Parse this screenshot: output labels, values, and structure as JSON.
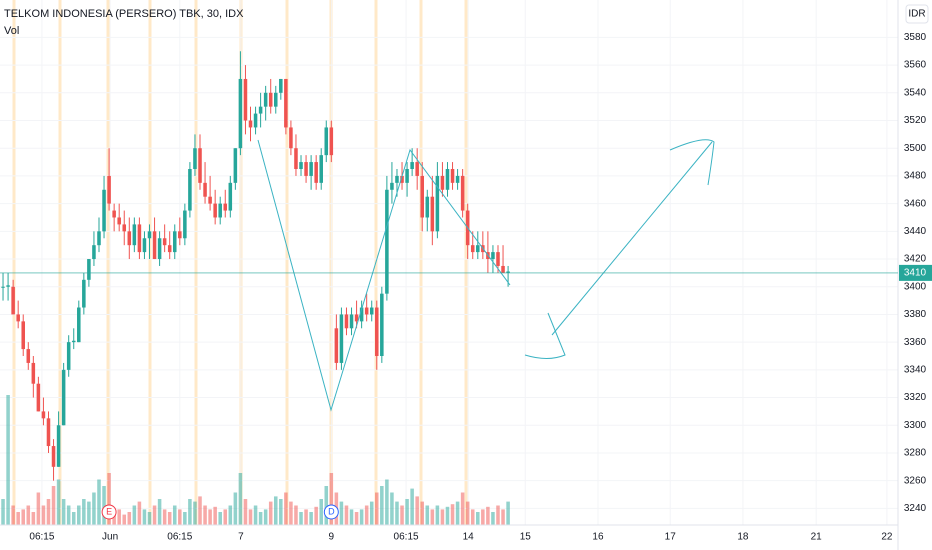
{
  "chart_data": {
    "type": "candlestick",
    "title": "TELKOM INDONESIA (PERSERO) TBK, 30, IDX",
    "volume_label": "Vol",
    "currency": "IDR",
    "last_price": 3410,
    "up_color": "#26a69a",
    "down_color": "#ef5350",
    "ylim": [
      3228,
      3607
    ],
    "yticks": [
      3240,
      3260,
      3280,
      3300,
      3320,
      3340,
      3360,
      3380,
      3400,
      3420,
      3440,
      3460,
      3480,
      3500,
      3520,
      3540,
      3560,
      3580
    ],
    "xlim": [
      -0.6,
      177.2
    ],
    "xticks": [
      {
        "value": 7.7,
        "label": "06:15"
      },
      {
        "value": 21.2,
        "label": "Jun"
      },
      {
        "value": 35,
        "label": "06:15"
      },
      {
        "value": 47.1,
        "label": "7"
      },
      {
        "value": 65,
        "label": "9"
      },
      {
        "value": 79.8,
        "label": "06:15"
      },
      {
        "value": 92.1,
        "label": "14"
      },
      {
        "value": 103.4,
        "label": "15"
      },
      {
        "value": 117.8,
        "label": "16"
      },
      {
        "value": 132.1,
        "label": "17"
      },
      {
        "value": 146.5,
        "label": "18"
      },
      {
        "value": 161,
        "label": "21"
      },
      {
        "value": 175,
        "label": "22"
      }
    ],
    "events": [
      {
        "label": "E",
        "index": 21
      },
      {
        "label": "D",
        "index": 65
      }
    ],
    "candles": [
      {
        "o": 3400,
        "h": 3410,
        "l": 3390,
        "c": 3400,
        "v": 20
      },
      {
        "o": 3400,
        "h": 3410,
        "l": 3390,
        "c": 3401,
        "v": 100
      },
      {
        "o": 3400,
        "h": 3405,
        "l": 3380,
        "c": 3380,
        "v": 15
      },
      {
        "o": 3380,
        "h": 3390,
        "l": 3370,
        "c": 3375,
        "v": 10
      },
      {
        "o": 3375,
        "h": 3380,
        "l": 3350,
        "c": 3355,
        "v": 12
      },
      {
        "o": 3355,
        "h": 3360,
        "l": 3340,
        "c": 3345,
        "v": 15
      },
      {
        "o": 3345,
        "h": 3350,
        "l": 3320,
        "c": 3330,
        "v": 10
      },
      {
        "o": 3330,
        "h": 3335,
        "l": 3310,
        "c": 3310,
        "v": 25
      },
      {
        "o": 3310,
        "h": 3320,
        "l": 3300,
        "c": 3305,
        "v": 15
      },
      {
        "o": 3305,
        "h": 3310,
        "l": 3280,
        "c": 3285,
        "v": 20
      },
      {
        "o": 3285,
        "h": 3290,
        "l": 3260,
        "c": 3270,
        "v": 30
      },
      {
        "o": 3270,
        "h": 3310,
        "l": 3270,
        "c": 3300,
        "v": 35
      },
      {
        "o": 3300,
        "h": 3345,
        "l": 3300,
        "c": 3340,
        "v": 20
      },
      {
        "o": 3340,
        "h": 3365,
        "l": 3335,
        "c": 3360,
        "v": 15
      },
      {
        "o": 3360,
        "h": 3370,
        "l": 3355,
        "c": 3361,
        "v": 10
      },
      {
        "o": 3360,
        "h": 3390,
        "l": 3360,
        "c": 3385,
        "v": 15
      },
      {
        "o": 3385,
        "h": 3410,
        "l": 3380,
        "c": 3405,
        "v": 20
      },
      {
        "o": 3405,
        "h": 3420,
        "l": 3400,
        "c": 3420,
        "v": 18
      },
      {
        "o": 3420,
        "h": 3440,
        "l": 3415,
        "c": 3430,
        "v": 25
      },
      {
        "o": 3430,
        "h": 3450,
        "l": 3425,
        "c": 3440,
        "v": 35
      },
      {
        "o": 3440,
        "h": 3480,
        "l": 3435,
        "c": 3470,
        "v": 30
      },
      {
        "o": 3480,
        "h": 3500,
        "l": 3455,
        "c": 3460,
        "v": 40
      },
      {
        "o": 3455,
        "h": 3460,
        "l": 3440,
        "c": 3450,
        "v": 10
      },
      {
        "o": 3450,
        "h": 3460,
        "l": 3440,
        "c": 3445,
        "v": 12
      },
      {
        "o": 3445,
        "h": 3455,
        "l": 3430,
        "c": 3440,
        "v": 8
      },
      {
        "o": 3440,
        "h": 3450,
        "l": 3420,
        "c": 3430,
        "v": 10
      },
      {
        "o": 3430,
        "h": 3450,
        "l": 3425,
        "c": 3445,
        "v": 15
      },
      {
        "o": 3445,
        "h": 3450,
        "l": 3420,
        "c": 3425,
        "v": 18
      },
      {
        "o": 3425,
        "h": 3440,
        "l": 3420,
        "c": 3435,
        "v": 12
      },
      {
        "o": 3435,
        "h": 3445,
        "l": 3420,
        "c": 3440,
        "v": 10
      },
      {
        "o": 3440,
        "h": 3450,
        "l": 3420,
        "c": 3420,
        "v": 15
      },
      {
        "o": 3420,
        "h": 3440,
        "l": 3415,
        "c": 3435,
        "v": 20
      },
      {
        "o": 3435,
        "h": 3445,
        "l": 3425,
        "c": 3430,
        "v": 12
      },
      {
        "o": 3430,
        "h": 3440,
        "l": 3420,
        "c": 3425,
        "v": 10
      },
      {
        "o": 3425,
        "h": 3445,
        "l": 3420,
        "c": 3440,
        "v": 15
      },
      {
        "o": 3440,
        "h": 3450,
        "l": 3430,
        "c": 3435,
        "v": 12
      },
      {
        "o": 3435,
        "h": 3460,
        "l": 3430,
        "c": 3455,
        "v": 10
      },
      {
        "o": 3455,
        "h": 3490,
        "l": 3450,
        "c": 3485,
        "v": 20
      },
      {
        "o": 3485,
        "h": 3510,
        "l": 3480,
        "c": 3500,
        "v": 18
      },
      {
        "o": 3500,
        "h": 3510,
        "l": 3470,
        "c": 3475,
        "v": 22
      },
      {
        "o": 3475,
        "h": 3490,
        "l": 3460,
        "c": 3465,
        "v": 15
      },
      {
        "o": 3465,
        "h": 3480,
        "l": 3455,
        "c": 3460,
        "v": 12
      },
      {
        "o": 3460,
        "h": 3470,
        "l": 3445,
        "c": 3450,
        "v": 14
      },
      {
        "o": 3450,
        "h": 3465,
        "l": 3445,
        "c": 3460,
        "v": 10
      },
      {
        "o": 3460,
        "h": 3470,
        "l": 3450,
        "c": 3455,
        "v": 12
      },
      {
        "o": 3455,
        "h": 3480,
        "l": 3450,
        "c": 3475,
        "v": 15
      },
      {
        "o": 3475,
        "h": 3500,
        "l": 3470,
        "c": 3500,
        "v": 25
      },
      {
        "o": 3500,
        "h": 3570,
        "l": 3495,
        "c": 3550,
        "v": 40
      },
      {
        "o": 3550,
        "h": 3560,
        "l": 3510,
        "c": 3520,
        "v": 20
      },
      {
        "o": 3520,
        "h": 3530,
        "l": 3505,
        "c": 3515,
        "v": 12
      },
      {
        "o": 3515,
        "h": 3530,
        "l": 3510,
        "c": 3525,
        "v": 15
      },
      {
        "o": 3525,
        "h": 3540,
        "l": 3515,
        "c": 3530,
        "v": 10
      },
      {
        "o": 3530,
        "h": 3545,
        "l": 3520,
        "c": 3540,
        "v": 12
      },
      {
        "o": 3540,
        "h": 3550,
        "l": 3525,
        "c": 3530,
        "v": 18
      },
      {
        "o": 3530,
        "h": 3545,
        "l": 3525,
        "c": 3540,
        "v": 22
      },
      {
        "o": 3540,
        "h": 3550,
        "l": 3535,
        "c": 3550,
        "v": 20
      },
      {
        "o": 3550,
        "h": 3550,
        "l": 3510,
        "c": 3515,
        "v": 25
      },
      {
        "o": 3515,
        "h": 3520,
        "l": 3495,
        "c": 3500,
        "v": 18
      },
      {
        "o": 3500,
        "h": 3510,
        "l": 3480,
        "c": 3485,
        "v": 15
      },
      {
        "o": 3485,
        "h": 3495,
        "l": 3480,
        "c": 3490,
        "v": 10
      },
      {
        "o": 3490,
        "h": 3495,
        "l": 3475,
        "c": 3480,
        "v": 12
      },
      {
        "o": 3480,
        "h": 3495,
        "l": 3470,
        "c": 3490,
        "v": 10
      },
      {
        "o": 3490,
        "h": 3495,
        "l": 3470,
        "c": 3475,
        "v": 14
      },
      {
        "o": 3475,
        "h": 3500,
        "l": 3470,
        "c": 3495,
        "v": 20
      },
      {
        "o": 3495,
        "h": 3520,
        "l": 3490,
        "c": 3515,
        "v": 30
      },
      {
        "o": 3515,
        "h": 3520,
        "l": 3490,
        "c": 3495,
        "v": 40
      },
      {
        "o": 3370,
        "h": 3380,
        "l": 3340,
        "c": 3345,
        "v": 25
      },
      {
        "o": 3345,
        "h": 3385,
        "l": 3340,
        "c": 3380,
        "v": 18
      },
      {
        "o": 3380,
        "h": 3385,
        "l": 3365,
        "c": 3370,
        "v": 15
      },
      {
        "o": 3370,
        "h": 3385,
        "l": 3365,
        "c": 3380,
        "v": 12
      },
      {
        "o": 3380,
        "h": 3390,
        "l": 3370,
        "c": 3375,
        "v": 10
      },
      {
        "o": 3375,
        "h": 3390,
        "l": 3370,
        "c": 3385,
        "v": 12
      },
      {
        "o": 3385,
        "h": 3395,
        "l": 3375,
        "c": 3380,
        "v": 15
      },
      {
        "o": 3380,
        "h": 3390,
        "l": 3375,
        "c": 3385,
        "v": 18
      },
      {
        "o": 3385,
        "h": 3390,
        "l": 3340,
        "c": 3350,
        "v": 25
      },
      {
        "o": 3350,
        "h": 3400,
        "l": 3345,
        "c": 3395,
        "v": 30
      },
      {
        "o": 3395,
        "h": 3480,
        "l": 3390,
        "c": 3470,
        "v": 35
      },
      {
        "o": 3470,
        "h": 3490,
        "l": 3460,
        "c": 3475,
        "v": 25
      },
      {
        "o": 3475,
        "h": 3485,
        "l": 3465,
        "c": 3480,
        "v": 18
      },
      {
        "o": 3480,
        "h": 3490,
        "l": 3470,
        "c": 3475,
        "v": 15
      },
      {
        "o": 3475,
        "h": 3490,
        "l": 3465,
        "c": 3485,
        "v": 20
      },
      {
        "o": 3485,
        "h": 3500,
        "l": 3480,
        "c": 3490,
        "v": 28
      },
      {
        "o": 3490,
        "h": 3500,
        "l": 3470,
        "c": 3480,
        "v": 22
      },
      {
        "o": 3480,
        "h": 3490,
        "l": 3440,
        "c": 3450,
        "v": 18
      },
      {
        "o": 3450,
        "h": 3470,
        "l": 3440,
        "c": 3465,
        "v": 15
      },
      {
        "o": 3465,
        "h": 3480,
        "l": 3430,
        "c": 3440,
        "v": 12
      },
      {
        "o": 3440,
        "h": 3490,
        "l": 3435,
        "c": 3480,
        "v": 15
      },
      {
        "o": 3480,
        "h": 3490,
        "l": 3465,
        "c": 3470,
        "v": 12
      },
      {
        "o": 3470,
        "h": 3490,
        "l": 3465,
        "c": 3485,
        "v": 14
      },
      {
        "o": 3485,
        "h": 3490,
        "l": 3470,
        "c": 3475,
        "v": 16
      },
      {
        "o": 3475,
        "h": 3485,
        "l": 3470,
        "c": 3480,
        "v": 18
      },
      {
        "o": 3480,
        "h": 3485,
        "l": 3450,
        "c": 3455,
        "v": 25
      },
      {
        "o": 3455,
        "h": 3460,
        "l": 3420,
        "c": 3430,
        "v": 18
      },
      {
        "o": 3430,
        "h": 3440,
        "l": 3420,
        "c": 3425,
        "v": 12
      },
      {
        "o": 3425,
        "h": 3440,
        "l": 3420,
        "c": 3430,
        "v": 10
      },
      {
        "o": 3430,
        "h": 3440,
        "l": 3420,
        "c": 3425,
        "v": 12
      },
      {
        "o": 3425,
        "h": 3440,
        "l": 3410,
        "c": 3420,
        "v": 14
      },
      {
        "o": 3420,
        "h": 3430,
        "l": 3410,
        "c": 3425,
        "v": 10
      },
      {
        "o": 3425,
        "h": 3430,
        "l": 3410,
        "c": 3415,
        "v": 15
      },
      {
        "o": 3415,
        "h": 3430,
        "l": 3410,
        "c": 3410,
        "v": 12
      },
      {
        "o": 3410,
        "h": 3415,
        "l": 3400,
        "c": 3411,
        "v": 18
      }
    ]
  }
}
